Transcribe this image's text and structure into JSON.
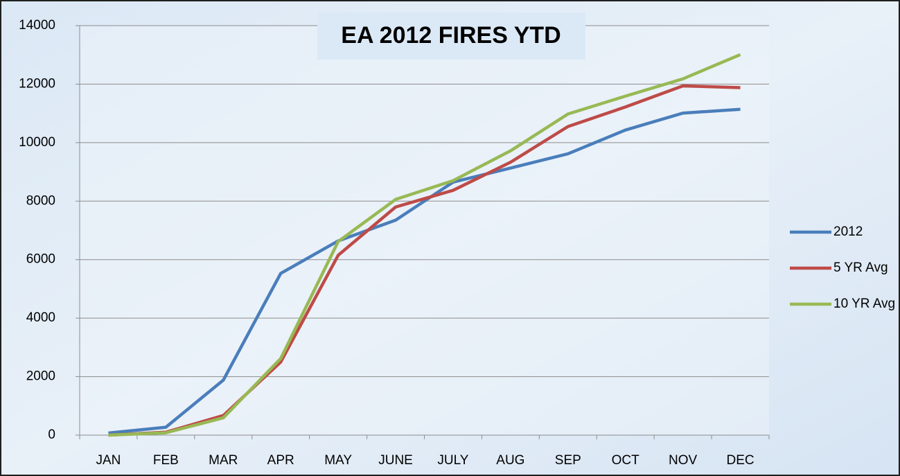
{
  "chart_data": {
    "type": "line",
    "title": "EA 2012 FIRES YTD",
    "categories": [
      "JAN",
      "FEB",
      "MAR",
      "APR",
      "MAY",
      "JUNE",
      "JULY",
      "AUG",
      "SEP",
      "OCT",
      "NOV",
      "DEC"
    ],
    "series": [
      {
        "name": "2012",
        "color": "#4a7ebb",
        "values": [
          70,
          270,
          1880,
          5530,
          6640,
          7350,
          8650,
          9130,
          9620,
          10430,
          11010,
          11140
        ]
      },
      {
        "name": "5 YR Avg",
        "color": "#be4b48",
        "values": [
          0,
          100,
          670,
          2500,
          6150,
          7800,
          8370,
          9330,
          10550,
          11220,
          11940,
          11880
        ]
      },
      {
        "name": "10 YR Avg",
        "color": "#98b954",
        "values": [
          0,
          80,
          590,
          2620,
          6620,
          8060,
          8700,
          9720,
          10980,
          11590,
          12180,
          13010
        ]
      }
    ],
    "ylim": [
      0,
      14000
    ],
    "yticks": [
      0,
      2000,
      4000,
      6000,
      8000,
      10000,
      12000,
      14000
    ],
    "grid": true,
    "legend": "right"
  }
}
